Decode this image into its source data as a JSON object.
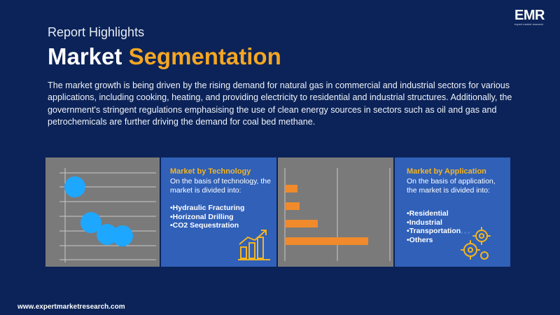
{
  "header": {
    "kicker": "Report Highlights",
    "title_main": "Market",
    "title_accent": "Segmentation",
    "description": "The market growth is being driven by the rising demand for natural gas in commercial and industrial sectors for various applications, including cooking, heating, and providing electricity to residential and industrial structures. Additionally, the government's stringent regulations emphasising the use of clean energy sources in sectors such as oil and gas and petrochemicals are further driving the demand for coal bed methane."
  },
  "logo": {
    "mark": "EMR",
    "tagline": "expert market research"
  },
  "technology": {
    "title": "Market by Technology",
    "intro": "On the basis of technology, the market is divided into:",
    "items": [
      "•Hydraulic Fracturing",
      "•Horizonal Drilling",
      "•CO2 Sequestration"
    ]
  },
  "application": {
    "title": "Market by Application",
    "intro": "On the basis of application, the market is divided into:",
    "items": [
      "•Residential",
      "•Industrial",
      "•Transportation",
      "•Others"
    ]
  },
  "colors": {
    "background": "#0b2358",
    "accent": "#f5a623",
    "panel_blue": "#3060b8",
    "panel_grey": "#7a7a7a",
    "bubble": "#1ea7ff",
    "bar": "#f08a2c"
  },
  "icons": {
    "chart_icon": "bar-chart-growth-icon",
    "gear_icon": "gears-icon"
  },
  "footer": {
    "url": "www.expertmarketresearch.com"
  }
}
